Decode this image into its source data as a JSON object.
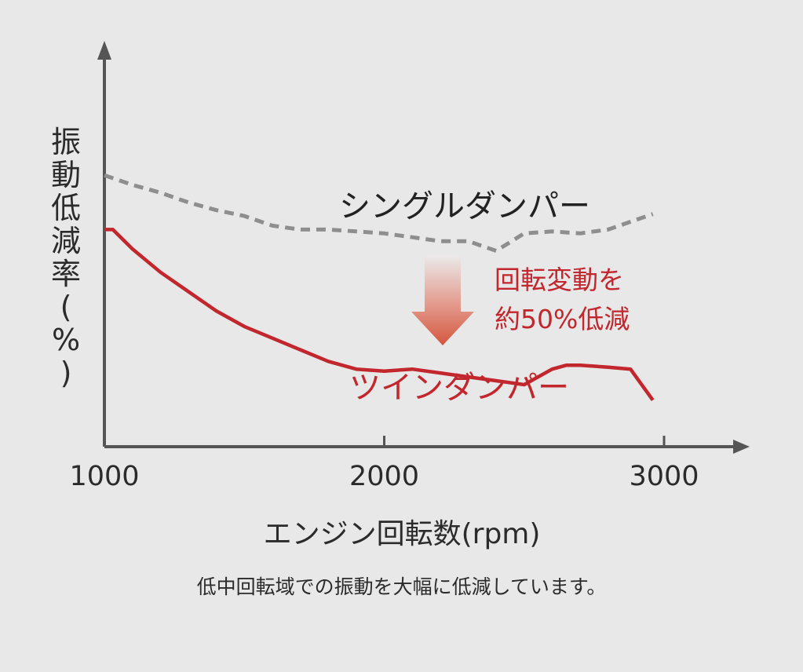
{
  "chart_data": {
    "type": "line",
    "ylabel": "振動低減率(%)",
    "xlabel": "エンジン回転数(rpm)",
    "xlim": [
      1000,
      3000
    ],
    "ylim": [
      0,
      100
    ],
    "xticks": [
      1000,
      2000,
      3000
    ],
    "grid": false,
    "series": [
      {
        "name": "シングルダンパー",
        "style": "dashed",
        "color": "#8e8e8e",
        "x": [
          1000,
          1100,
          1200,
          1300,
          1400,
          1500,
          1600,
          1700,
          1800,
          1900,
          2000,
          2100,
          2200,
          2300,
          2400,
          2500,
          2600,
          2700,
          2800,
          2900,
          2960
        ],
        "y": [
          70,
          67.5,
          65.5,
          63,
          61,
          59.5,
          57,
          56,
          56,
          55.5,
          55,
          54,
          53,
          53,
          50.5,
          55,
          55.5,
          55,
          56,
          58.5,
          60
        ]
      },
      {
        "name": "ツインダンパー",
        "style": "solid",
        "color": "#c1272d",
        "x": [
          1000,
          1030,
          1100,
          1200,
          1300,
          1400,
          1500,
          1600,
          1700,
          1800,
          1900,
          2000,
          2100,
          2200,
          2300,
          2400,
          2500,
          2600,
          2650,
          2700,
          2800,
          2880,
          2960
        ],
        "y": [
          56,
          56,
          51,
          45,
          40,
          35,
          31,
          28,
          25,
          22,
          20,
          19.5,
          20,
          19,
          18,
          17,
          16,
          20,
          21,
          21,
          20.5,
          20,
          12
        ]
      }
    ],
    "annotations": [
      {
        "text": "回転変動を約50%低減",
        "lines": [
          "回転変動を",
          "約50%低減"
        ],
        "color": "#c1272d"
      }
    ]
  },
  "caption": "低中回転域での振動を大幅に低減しています。"
}
